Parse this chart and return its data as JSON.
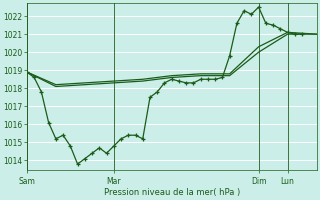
{
  "xlabel": "Pression niveau de la mer( hPa )",
  "bg_color": "#cceee8",
  "grid_color": "#ffffff",
  "line_color": "#1a5c1a",
  "ylim": [
    1013.5,
    1022.7
  ],
  "yticks": [
    1014,
    1015,
    1016,
    1017,
    1018,
    1019,
    1020,
    1021,
    1022
  ],
  "xlim": [
    0,
    240
  ],
  "x_tick_positions": [
    0,
    72,
    192,
    216
  ],
  "x_tick_labels": [
    "Sam",
    "Mar",
    "Dim",
    "Lun"
  ],
  "line1_x": [
    0,
    6,
    12,
    18,
    24,
    30,
    36,
    42,
    48,
    54,
    60,
    66,
    72,
    78,
    84,
    90,
    96,
    102,
    108,
    114,
    120,
    126,
    132,
    138,
    144,
    150,
    156,
    162,
    168,
    174,
    180,
    186,
    192,
    198,
    204,
    210,
    216,
    222,
    228
  ],
  "line1_y": [
    1018.9,
    1018.6,
    1017.8,
    1016.1,
    1015.2,
    1015.4,
    1014.8,
    1013.8,
    1014.1,
    1014.4,
    1014.7,
    1014.4,
    1014.8,
    1015.2,
    1015.4,
    1015.4,
    1015.2,
    1017.5,
    1017.8,
    1018.3,
    1018.5,
    1018.4,
    1018.3,
    1018.3,
    1018.5,
    1018.5,
    1018.5,
    1018.6,
    1019.8,
    1021.6,
    1022.3,
    1022.1,
    1022.5,
    1021.6,
    1021.5,
    1021.3,
    1021.1,
    1021.0,
    1021.0
  ],
  "line2_x": [
    0,
    24,
    48,
    72,
    96,
    120,
    144,
    168,
    192,
    216,
    240
  ],
  "line2_y": [
    1018.9,
    1018.2,
    1018.3,
    1018.4,
    1018.5,
    1018.7,
    1018.8,
    1018.8,
    1020.3,
    1021.1,
    1021.0
  ],
  "line3_x": [
    0,
    24,
    48,
    72,
    96,
    120,
    144,
    168,
    192,
    216,
    240
  ],
  "line3_y": [
    1018.9,
    1018.1,
    1018.2,
    1018.3,
    1018.4,
    1018.6,
    1018.7,
    1018.7,
    1020.0,
    1021.0,
    1021.0
  ]
}
